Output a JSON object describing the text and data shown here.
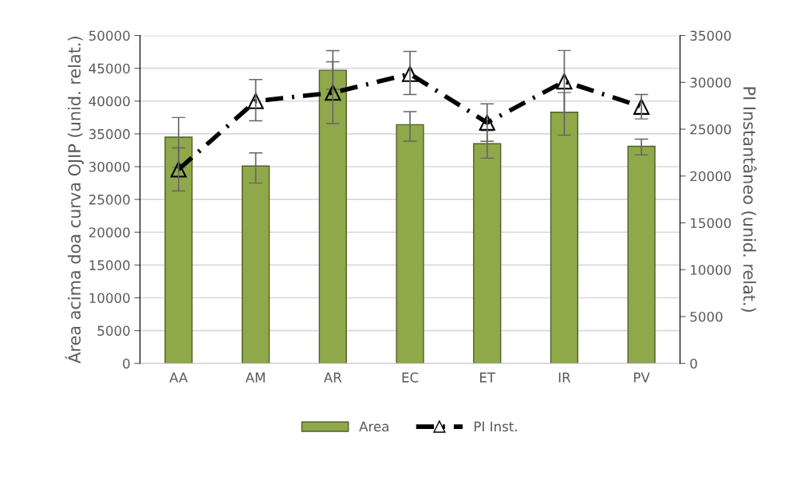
{
  "chart_data": {
    "type": "bar",
    "categories": [
      "AA",
      "AM",
      "AR",
      "EC",
      "ET",
      "IR",
      "PV"
    ],
    "ylabel": "Área acima doa curva OJIP (unid. relat.)",
    "y2label": "PI Instantâneo (unid. relat.)",
    "ylim": [
      0,
      50000
    ],
    "yticks": [
      0,
      5000,
      10000,
      15000,
      20000,
      25000,
      30000,
      35000,
      40000,
      45000,
      50000
    ],
    "y2lim": [
      0,
      35000
    ],
    "y2ticks": [
      0,
      5000,
      10000,
      15000,
      20000,
      25000,
      30000,
      35000
    ],
    "grid": "y",
    "legend": "bottom",
    "series": [
      {
        "name": "Area",
        "color": "#8fa84a",
        "values": [
          34500,
          30100,
          44700,
          36400,
          33500,
          38300,
          33100
        ],
        "errors": [
          [
            29900,
            37500
          ],
          [
            27500,
            32100
          ],
          [
            41800,
            47700
          ],
          [
            33900,
            38400
          ],
          [
            31300,
            35500
          ],
          [
            34800,
            41300
          ],
          [
            31800,
            34200
          ]
        ]
      },
      {
        "name": "PI Inst.",
        "type": "line",
        "axis": "y2",
        "color": "#000000",
        "marker": "triangle",
        "line_style": "dashed",
        "values": [
          20700,
          28000,
          28900,
          30900,
          25700,
          30100,
          27400
        ],
        "errors": [
          [
            18400,
            23000
          ],
          [
            25900,
            30300
          ],
          [
            25600,
            32200
          ],
          [
            28700,
            33300
          ],
          [
            23700,
            27700
          ],
          [
            26800,
            33400
          ],
          [
            26100,
            28700
          ]
        ]
      }
    ]
  }
}
